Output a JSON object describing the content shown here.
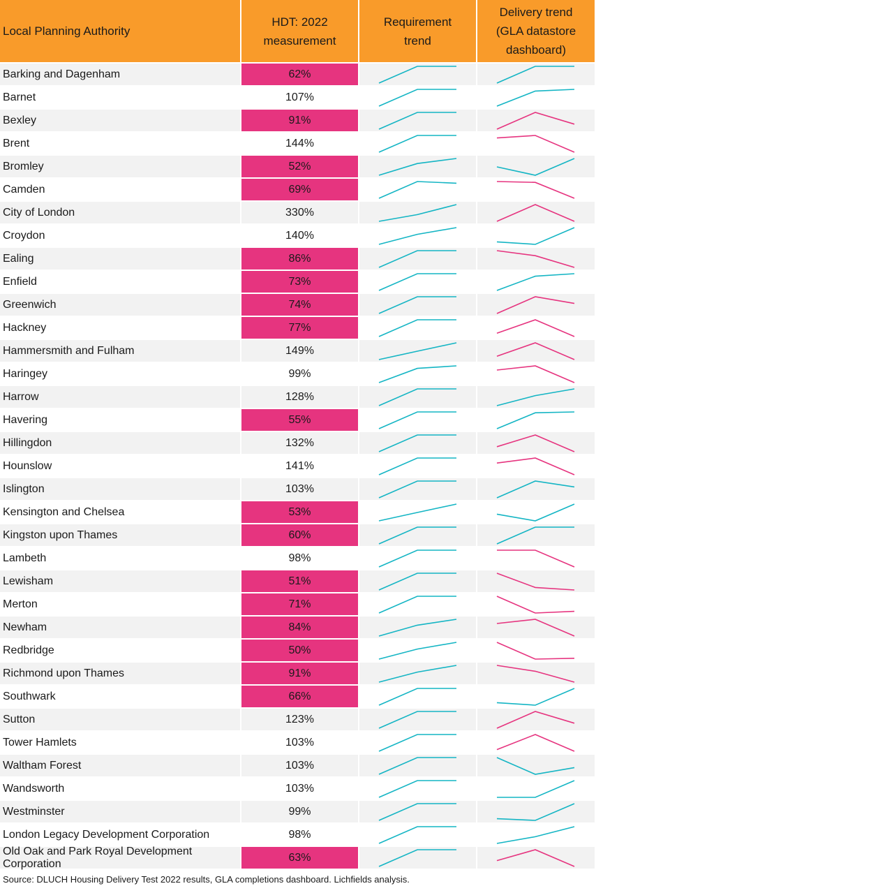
{
  "headers": {
    "col0": "Local Planning Authority",
    "col1": "HDT: 2022\nmeasurement",
    "col2": "Requirement\ntrend",
    "col3": "Delivery trend\n(GLA datastore\ndashboard)"
  },
  "colors": {
    "header": "#f99b2a",
    "fail": "#e6347f",
    "up": "#14b5c4",
    "down": "#e6347f",
    "row": "#f2f2f2"
  },
  "fail_threshold": 95,
  "chart_data": {
    "type": "table",
    "columns": [
      "Local Planning Authority",
      "HDT: 2022 measurement",
      "Requirement trend",
      "Delivery trend (GLA datastore dashboard)"
    ],
    "rows": [
      {
        "lpa": "Barking and Dagenham",
        "hdt": "62%",
        "hdt_value": 62,
        "req": [
          0,
          1,
          1
        ],
        "del": [
          0,
          1,
          1
        ],
        "del_dir": "up"
      },
      {
        "lpa": "Barnet",
        "hdt": "107%",
        "hdt_value": 107,
        "req": [
          0,
          1,
          1
        ],
        "del": [
          0,
          0.9,
          1
        ],
        "del_dir": "up"
      },
      {
        "lpa": "Bexley",
        "hdt": "91%",
        "hdt_value": 91,
        "req": [
          0,
          1,
          1
        ],
        "del": [
          0,
          1,
          0.3
        ],
        "del_dir": "down"
      },
      {
        "lpa": "Brent",
        "hdt": "144%",
        "hdt_value": 144,
        "req": [
          0,
          1,
          1
        ],
        "del": [
          0.85,
          1,
          0
        ],
        "del_dir": "down"
      },
      {
        "lpa": "Bromley",
        "hdt": "52%",
        "hdt_value": 52,
        "req": [
          0,
          0.7,
          1
        ],
        "del": [
          0.5,
          0,
          1
        ],
        "del_dir": "up"
      },
      {
        "lpa": "Camden",
        "hdt": "69%",
        "hdt_value": 69,
        "req": [
          0,
          1,
          0.9
        ],
        "del": [
          1,
          0.95,
          0
        ],
        "del_dir": "down"
      },
      {
        "lpa": "City of London",
        "hdt": "330%",
        "hdt_value": 330,
        "req": [
          0,
          0.4,
          1
        ],
        "del": [
          0,
          1,
          0
        ],
        "del_dir": "down"
      },
      {
        "lpa": "Croydon",
        "hdt": "140%",
        "hdt_value": 140,
        "req": [
          0,
          0.6,
          1
        ],
        "del": [
          0.15,
          0,
          1
        ],
        "del_dir": "up"
      },
      {
        "lpa": "Ealing",
        "hdt": "86%",
        "hdt_value": 86,
        "req": [
          0,
          1,
          1
        ],
        "del": [
          1,
          0.7,
          0
        ],
        "del_dir": "down"
      },
      {
        "lpa": "Enfield",
        "hdt": "73%",
        "hdt_value": 73,
        "req": [
          0,
          1,
          1
        ],
        "del": [
          0,
          0.85,
          1
        ],
        "del_dir": "up"
      },
      {
        "lpa": "Greenwich",
        "hdt": "74%",
        "hdt_value": 74,
        "req": [
          0,
          1,
          1
        ],
        "del": [
          0,
          1,
          0.6
        ],
        "del_dir": "down"
      },
      {
        "lpa": "Hackney",
        "hdt": "77%",
        "hdt_value": 77,
        "req": [
          0,
          1,
          1
        ],
        "del": [
          0.2,
          1,
          0
        ],
        "del_dir": "down"
      },
      {
        "lpa": "Hammersmith and Fulham",
        "hdt": "149%",
        "hdt_value": 149,
        "req": [
          0,
          0.5,
          1
        ],
        "del": [
          0.2,
          1,
          0
        ],
        "del_dir": "down"
      },
      {
        "lpa": "Haringey",
        "hdt": "99%",
        "hdt_value": 99,
        "req": [
          0,
          0.85,
          1
        ],
        "del": [
          0.75,
          1,
          0
        ],
        "del_dir": "down"
      },
      {
        "lpa": "Harrow",
        "hdt": "128%",
        "hdt_value": 128,
        "req": [
          0,
          1,
          1
        ],
        "del": [
          0,
          0.6,
          1
        ],
        "del_dir": "up"
      },
      {
        "lpa": "Havering",
        "hdt": "55%",
        "hdt_value": 55,
        "req": [
          0,
          1,
          1
        ],
        "del": [
          0,
          0.95,
          1
        ],
        "del_dir": "up"
      },
      {
        "lpa": "Hillingdon",
        "hdt": "132%",
        "hdt_value": 132,
        "req": [
          0,
          1,
          1
        ],
        "del": [
          0.3,
          1,
          0
        ],
        "del_dir": "down"
      },
      {
        "lpa": "Hounslow",
        "hdt": "141%",
        "hdt_value": 141,
        "req": [
          0,
          1,
          1
        ],
        "del": [
          0.7,
          1,
          0
        ],
        "del_dir": "down"
      },
      {
        "lpa": "Islington",
        "hdt": "103%",
        "hdt_value": 103,
        "req": [
          0,
          1,
          1
        ],
        "del": [
          0,
          1,
          0.65
        ],
        "del_dir": "up"
      },
      {
        "lpa": "Kensington and Chelsea",
        "hdt": "53%",
        "hdt_value": 53,
        "req": [
          0,
          0.5,
          1
        ],
        "del": [
          0.4,
          0,
          1
        ],
        "del_dir": "up"
      },
      {
        "lpa": "Kingston upon Thames",
        "hdt": "60%",
        "hdt_value": 60,
        "req": [
          0,
          1,
          1
        ],
        "del": [
          0,
          1,
          1
        ],
        "del_dir": "up"
      },
      {
        "lpa": "Lambeth",
        "hdt": "98%",
        "hdt_value": 98,
        "req": [
          0,
          1,
          1
        ],
        "del": [
          1,
          1,
          0
        ],
        "del_dir": "down"
      },
      {
        "lpa": "Lewisham",
        "hdt": "51%",
        "hdt_value": 51,
        "req": [
          0,
          1,
          1
        ],
        "del": [
          1,
          0.15,
          0
        ],
        "del_dir": "down"
      },
      {
        "lpa": "Merton",
        "hdt": "71%",
        "hdt_value": 71,
        "req": [
          0,
          1,
          1
        ],
        "del": [
          1,
          0,
          0.1
        ],
        "del_dir": "down"
      },
      {
        "lpa": "Newham",
        "hdt": "84%",
        "hdt_value": 84,
        "req": [
          0,
          0.65,
          1
        ],
        "del": [
          0.75,
          1,
          0
        ],
        "del_dir": "down"
      },
      {
        "lpa": "Redbridge",
        "hdt": "50%",
        "hdt_value": 50,
        "req": [
          0,
          0.6,
          1
        ],
        "del": [
          1,
          0,
          0.05
        ],
        "del_dir": "down"
      },
      {
        "lpa": "Richmond upon Thames",
        "hdt": "91%",
        "hdt_value": 91,
        "req": [
          0,
          0.6,
          1
        ],
        "del": [
          1,
          0.65,
          0
        ],
        "del_dir": "down"
      },
      {
        "lpa": "Southwark",
        "hdt": "66%",
        "hdt_value": 66,
        "req": [
          0,
          1,
          1
        ],
        "del": [
          0.15,
          0,
          1
        ],
        "del_dir": "up"
      },
      {
        "lpa": "Sutton",
        "hdt": "123%",
        "hdt_value": 123,
        "req": [
          0,
          1,
          1
        ],
        "del": [
          0,
          1,
          0.3
        ],
        "del_dir": "down"
      },
      {
        "lpa": "Tower Hamlets",
        "hdt": "103%",
        "hdt_value": 103,
        "req": [
          0,
          1,
          1
        ],
        "del": [
          0.1,
          1,
          0
        ],
        "del_dir": "down"
      },
      {
        "lpa": "Waltham Forest",
        "hdt": "103%",
        "hdt_value": 103,
        "req": [
          0,
          1,
          1
        ],
        "del": [
          1,
          0,
          0.4
        ],
        "del_dir": "up"
      },
      {
        "lpa": "Wandsworth",
        "hdt": "103%",
        "hdt_value": 103,
        "req": [
          0,
          1,
          1
        ],
        "del": [
          0,
          0,
          1
        ],
        "del_dir": "up"
      },
      {
        "lpa": "Westminster",
        "hdt": "99%",
        "hdt_value": 99,
        "req": [
          0,
          1,
          1
        ],
        "del": [
          0.1,
          0,
          1
        ],
        "del_dir": "up"
      },
      {
        "lpa": "London Legacy Development Corporation",
        "hdt": "98%",
        "hdt_value": 98,
        "req": [
          0,
          1,
          1
        ],
        "del": [
          0,
          0.4,
          1
        ],
        "del_dir": "up"
      },
      {
        "lpa": "Old Oak and Park Royal Development Corporation",
        "hdt": "63%",
        "hdt_value": 63,
        "req": [
          0,
          1,
          1
        ],
        "del": [
          0.35,
          1,
          0
        ],
        "del_dir": "down"
      }
    ]
  },
  "source": "Source: DLUCH Housing Delivery Test 2022 results, GLA completions dashboard. Lichfields analysis."
}
